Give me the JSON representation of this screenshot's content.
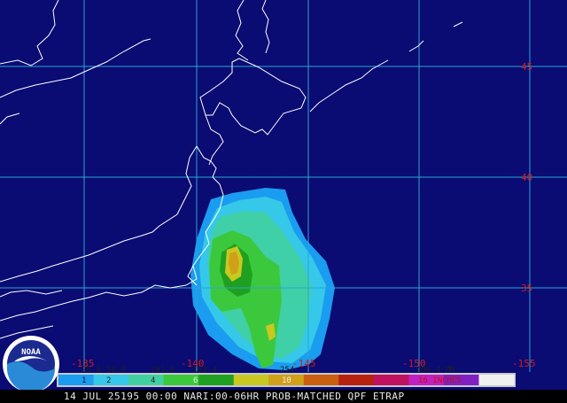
{
  "map": {
    "lat_labels": [
      "45",
      "40",
      "35"
    ],
    "lon_labels": [
      "-135",
      "-140",
      "-145",
      "-150",
      "-155"
    ],
    "grid_color": "#2aa6d6",
    "label_color": "#d01c1c",
    "coast_color": "#ffffff",
    "ocean_color": "#0a0b73"
  },
  "legend": {
    "mm_labels": [
      "25.4",
      "50.8",
      "101.6",
      "152.4",
      "254",
      "406.4 MM"
    ],
    "inch_labels": [
      "1",
      "2",
      "4",
      "6",
      "10",
      "16 INCHES"
    ],
    "colors": [
      "#1a9cf0",
      "#35c8e8",
      "#40d0a0",
      "#3cc83c",
      "#20a020",
      "#c8c820",
      "#d0a018",
      "#c86010",
      "#b82010",
      "#c01060",
      "#c020c0",
      "#8020c0",
      "#f0f0f0"
    ]
  },
  "caption": "14 JUL 25195 00:00 NARI:00-06HR PROB-MATCHED QPF ETRAP",
  "logo": {
    "text": "NOAA"
  }
}
